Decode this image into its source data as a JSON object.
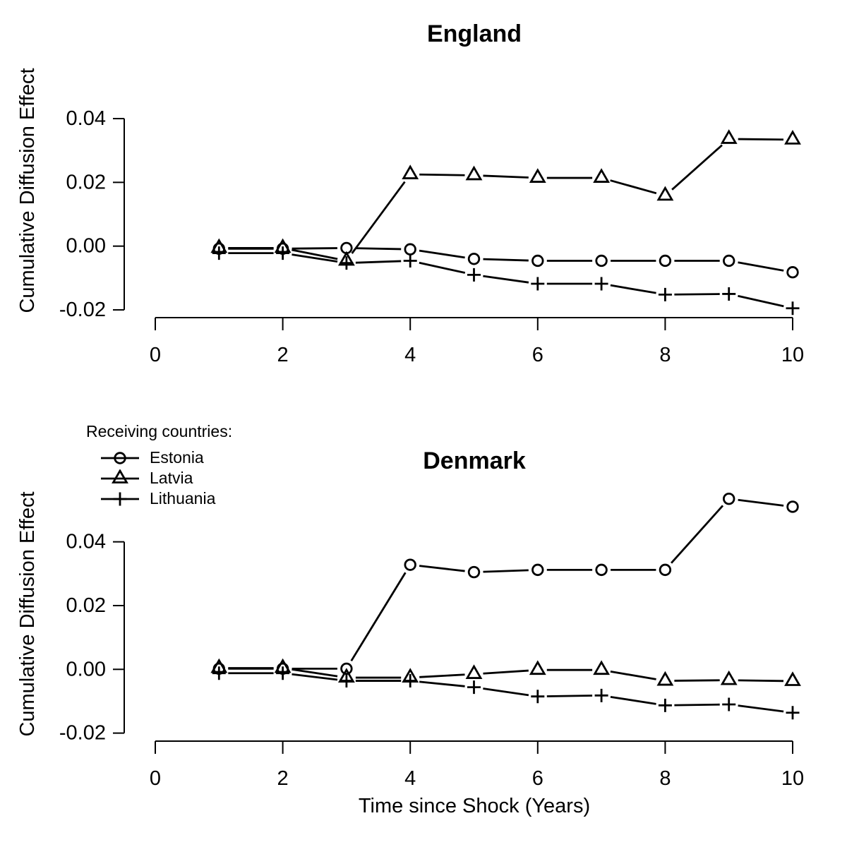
{
  "colors": {
    "foreground": "#000000",
    "background": "#ffffff"
  },
  "legend": {
    "title": "Receiving countries:",
    "entries": [
      {
        "label": "Estonia",
        "marker": "circle"
      },
      {
        "label": "Latvia",
        "marker": "triangle"
      },
      {
        "label": "Lithuania",
        "marker": "plus"
      }
    ]
  },
  "chart_data": [
    {
      "type": "line",
      "title": "England",
      "xlabel": "",
      "ylabel": "Cumulative Diffusion Effect",
      "x": [
        1,
        2,
        3,
        4,
        5,
        6,
        7,
        8,
        9,
        10
      ],
      "xlim": [
        0,
        10
      ],
      "ylim": [
        -0.02,
        0.04
      ],
      "xticks": [
        0,
        2,
        4,
        6,
        8,
        10
      ],
      "yticks": [
        0.04,
        0.02,
        0.0,
        -0.02
      ],
      "ytick_labels": [
        "0.04",
        "0.02",
        "0.00",
        "-0.02"
      ],
      "grid": false,
      "legend_position": "none",
      "series": [
        {
          "name": "Estonia",
          "marker": "circle",
          "values": [
            -0.0008,
            -0.0008,
            -0.0006,
            -0.001,
            -0.004,
            -0.0046,
            -0.0046,
            -0.0046,
            -0.0046,
            -0.0082
          ]
        },
        {
          "name": "Latvia",
          "marker": "triangle",
          "values": [
            -0.0006,
            -0.0006,
            -0.0046,
            0.0225,
            0.0222,
            0.0214,
            0.0214,
            0.0158,
            0.0336,
            0.0334
          ]
        },
        {
          "name": "Lithuania",
          "marker": "plus",
          "values": [
            -0.0022,
            -0.0022,
            -0.0053,
            -0.0046,
            -0.009,
            -0.0118,
            -0.0118,
            -0.0152,
            -0.015,
            -0.0195
          ]
        }
      ]
    },
    {
      "type": "line",
      "title": "Denmark",
      "xlabel": "Time since Shock (Years)",
      "ylabel": "Cumulative Diffusion Effect",
      "x": [
        1,
        2,
        3,
        4,
        5,
        6,
        7,
        8,
        9,
        10
      ],
      "xlim": [
        0,
        10
      ],
      "ylim": [
        -0.02,
        0.04
      ],
      "xticks": [
        0,
        2,
        4,
        6,
        8,
        10
      ],
      "yticks": [
        0.04,
        0.02,
        0.0,
        -0.02
      ],
      "ytick_labels": [
        "0.04",
        "0.02",
        "0.00",
        "-0.02"
      ],
      "grid": false,
      "legend_position": "top-left-outside",
      "series": [
        {
          "name": "Estonia",
          "marker": "circle",
          "values": [
            0.0002,
            0.0002,
            0.0002,
            0.0328,
            0.0305,
            0.0312,
            0.0312,
            0.0312,
            0.0535,
            0.051
          ]
        },
        {
          "name": "Latvia",
          "marker": "triangle",
          "values": [
            0.0004,
            0.0004,
            -0.0026,
            -0.0026,
            -0.0015,
            -0.0002,
            -0.0002,
            -0.0036,
            -0.0034,
            -0.0037
          ]
        },
        {
          "name": "Lithuania",
          "marker": "plus",
          "values": [
            -0.0012,
            -0.0012,
            -0.0036,
            -0.0036,
            -0.0056,
            -0.0085,
            -0.0082,
            -0.0113,
            -0.011,
            -0.0136
          ]
        }
      ]
    }
  ]
}
